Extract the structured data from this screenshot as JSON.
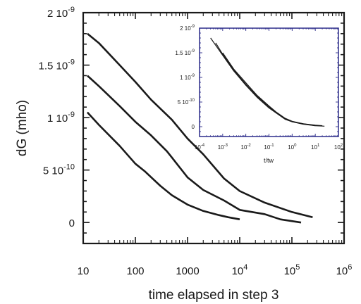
{
  "chart_data": [
    {
      "type": "line",
      "title": "",
      "xlabel": "time elapsed in step 3",
      "ylabel": "dG (mho)",
      "xscale": "log",
      "xlim": [
        10,
        1000000
      ],
      "ylim": [
        -2e-10,
        2e-09
      ],
      "grid": false,
      "legend": "none",
      "x_tick_labels": [
        {
          "base": "10",
          "exp": ""
        },
        {
          "base": "100",
          "exp": ""
        },
        {
          "base": "1000",
          "exp": ""
        },
        {
          "base": "10",
          "exp": "4"
        },
        {
          "base": "10",
          "exp": "5"
        },
        {
          "base": "10",
          "exp": "6"
        }
      ],
      "y_tick_labels": [
        {
          "base": "0",
          "exp": ""
        },
        {
          "base": "5 10",
          "exp": "-10"
        },
        {
          "base": "1 10",
          "exp": "-9"
        },
        {
          "base": "1.5 10",
          "exp": "-9"
        },
        {
          "base": "2 10",
          "exp": "-9"
        }
      ],
      "series": [
        {
          "x": [
            12,
            20,
            50,
            100,
            150,
            300,
            500,
            1000,
            2000,
            4000,
            6000,
            10000
          ],
          "y": [
            1.05e-09,
            9.3e-10,
            7.3e-10,
            5.6e-10,
            4.9e-10,
            3.5e-10,
            2.6e-10,
            1.7e-10,
            1.1e-10,
            7e-11,
            5e-11,
            3e-11
          ]
        },
        {
          "x": [
            12,
            20,
            50,
            100,
            200,
            400,
            500,
            1000,
            2000,
            5000,
            10000,
            30000,
            60000,
            150000
          ],
          "y": [
            1.4e-09,
            1.3e-09,
            1.11e-09,
            9.6e-10,
            8.3e-10,
            6.8e-10,
            6.2e-10,
            4.3e-10,
            3.1e-10,
            2.1e-10,
            1.2e-10,
            8e-11,
            3e-11,
            0
          ]
        },
        {
          "x": [
            12,
            20,
            50,
            100,
            200,
            500,
            1000,
            2000,
            5000,
            10000,
            30000,
            100000,
            250000
          ],
          "y": [
            1.8e-09,
            1.71e-09,
            1.5e-09,
            1.34e-09,
            1.17e-09,
            9.8e-10,
            8e-10,
            6.5e-10,
            4.2e-10,
            3e-10,
            1.9e-10,
            1e-10,
            5e-11
          ]
        }
      ]
    },
    {
      "type": "line",
      "title": "",
      "xlabel": "t/tw",
      "ylabel": "",
      "xscale": "log",
      "xlim": [
        0.0001,
        100
      ],
      "ylim": [
        -2e-10,
        2e-09
      ],
      "grid": false,
      "legend": "none",
      "x_tick_labels": [
        {
          "base": "10",
          "exp": "-4"
        },
        {
          "base": "10",
          "exp": "-3"
        },
        {
          "base": "10",
          "exp": "-2"
        },
        {
          "base": "10",
          "exp": "-1"
        },
        {
          "base": "10",
          "exp": "0"
        },
        {
          "base": "10",
          "exp": "1"
        },
        {
          "base": "10",
          "exp": "2"
        }
      ],
      "y_tick_labels": [
        {
          "base": "0",
          "exp": ""
        },
        {
          "base": "5 10",
          "exp": "-10"
        },
        {
          "base": "1 10",
          "exp": "-9"
        },
        {
          "base": "1.5 10",
          "exp": "-9"
        },
        {
          "base": "2 10",
          "exp": "-9"
        }
      ],
      "series": [
        {
          "x": [
            0.0003,
            0.001,
            0.003,
            0.01,
            0.03,
            0.1,
            0.2,
            0.5,
            1,
            3,
            10,
            25
          ],
          "y": [
            1.8e-09,
            1.45e-09,
            1.13e-09,
            8.4e-10,
            6e-10,
            3.8e-10,
            2.8e-10,
            1.5e-10,
            1e-10,
            5e-11,
            2e-11,
            1e-11
          ]
        },
        {
          "x": [
            0.0005,
            0.001,
            0.003,
            0.01,
            0.03,
            0.1,
            0.2,
            0.5,
            1,
            3,
            10,
            20
          ],
          "y": [
            1.7e-09,
            1.47e-09,
            1.15e-09,
            8.6e-10,
            6.2e-10,
            4e-10,
            2.9e-10,
            1.6e-10,
            1e-10,
            6e-11,
            3e-11,
            2e-11
          ]
        },
        {
          "x": [
            0.001,
            0.003,
            0.01,
            0.03,
            0.1,
            0.2,
            0.5,
            1,
            3,
            10
          ],
          "y": [
            1.5e-09,
            1.17e-09,
            8.9e-10,
            6.4e-10,
            4.2e-10,
            3e-10,
            1.7e-10,
            1.1e-10,
            6e-11,
            2e-11
          ]
        }
      ]
    }
  ]
}
